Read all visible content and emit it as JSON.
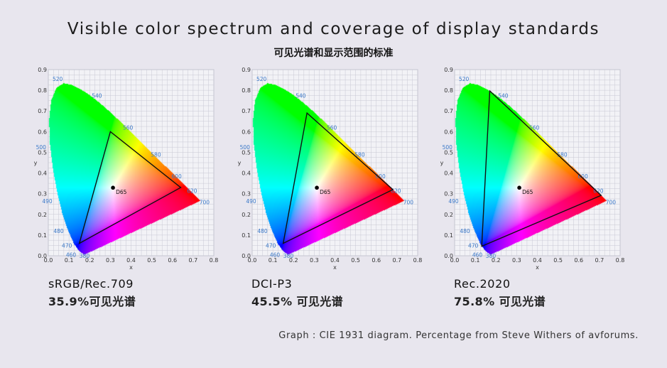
{
  "title": "Visible color spectrum and coverage of display standards",
  "subtitle": "可见光谱和显示范围的标准",
  "footer": "Graph : CIE 1931 diagram. Percentage from  Steve Withers of avforums.",
  "colors": {
    "background": "#e8e6ee",
    "triangle": "#111111",
    "grid": "#c8c8d4",
    "wavelength_labels": "#3a78c8"
  },
  "chart_data": [
    {
      "type": "scatter",
      "xlabel": "x",
      "ylabel": "y",
      "xlim": [
        0,
        0.8
      ],
      "ylim": [
        0,
        0.9
      ],
      "xticks": [
        "0.0",
        "0.1",
        "0.2",
        "0.3",
        "0.4",
        "0.5",
        "0.6",
        "0.7",
        "0.8"
      ],
      "yticks": [
        "0.0",
        "0.1",
        "0.2",
        "0.3",
        "0.4",
        "0.5",
        "0.6",
        "0.7",
        "0.8",
        "0.9"
      ],
      "grid": true,
      "wavelength_labels": [
        "380",
        "460",
        "470",
        "480",
        "490",
        "500",
        "520",
        "540",
        "560",
        "580",
        "600",
        "620",
        "700"
      ],
      "white_point": {
        "label": "D65",
        "x": 0.3127,
        "y": 0.329
      },
      "gamut": {
        "name": "sRGB/Rec.709",
        "primaries": [
          [
            0.64,
            0.33
          ],
          [
            0.3,
            0.6
          ],
          [
            0.15,
            0.06
          ]
        ]
      },
      "caption_name": "sRGB/Rec.709",
      "caption_coverage": "35.9%可见光谱"
    },
    {
      "type": "scatter",
      "xlabel": "x",
      "ylabel": "y",
      "xlim": [
        0,
        0.8
      ],
      "ylim": [
        0,
        0.9
      ],
      "xticks": [
        "0.0",
        "0.1",
        "0.2",
        "0.3",
        "0.4",
        "0.5",
        "0.6",
        "0.7",
        "0.8"
      ],
      "yticks": [
        "0.0",
        "0.1",
        "0.2",
        "0.3",
        "0.4",
        "0.5",
        "0.6",
        "0.7",
        "0.8",
        "0.9"
      ],
      "grid": true,
      "wavelength_labels": [
        "380",
        "460",
        "470",
        "480",
        "490",
        "500",
        "520",
        "540",
        "560",
        "580",
        "600",
        "620",
        "700"
      ],
      "white_point": {
        "label": "D65",
        "x": 0.3127,
        "y": 0.329
      },
      "gamut": {
        "name": "DCI-P3",
        "primaries": [
          [
            0.68,
            0.32
          ],
          [
            0.265,
            0.69
          ],
          [
            0.15,
            0.06
          ]
        ]
      },
      "caption_name": "DCI-P3",
      "caption_coverage": "45.5% 可见光谱"
    },
    {
      "type": "scatter",
      "xlabel": "x",
      "ylabel": "y",
      "xlim": [
        0,
        0.8
      ],
      "ylim": [
        0,
        0.9
      ],
      "xticks": [
        "0.0",
        "0.1",
        "0.2",
        "0.3",
        "0.4",
        "0.5",
        "0.6",
        "0.7",
        "0.8"
      ],
      "yticks": [
        "0.0",
        "0.1",
        "0.2",
        "0.3",
        "0.4",
        "0.5",
        "0.6",
        "0.7",
        "0.8",
        "0.9"
      ],
      "grid": true,
      "wavelength_labels": [
        "380",
        "460",
        "470",
        "480",
        "490",
        "500",
        "520",
        "540",
        "560",
        "580",
        "600",
        "620",
        "700"
      ],
      "white_point": {
        "label": "D65",
        "x": 0.3127,
        "y": 0.329
      },
      "gamut": {
        "name": "Rec.2020",
        "primaries": [
          [
            0.708,
            0.292
          ],
          [
            0.17,
            0.797
          ],
          [
            0.131,
            0.046
          ]
        ]
      },
      "caption_name": "Rec.2020",
      "caption_coverage": "75.8%  可见光谱"
    }
  ]
}
